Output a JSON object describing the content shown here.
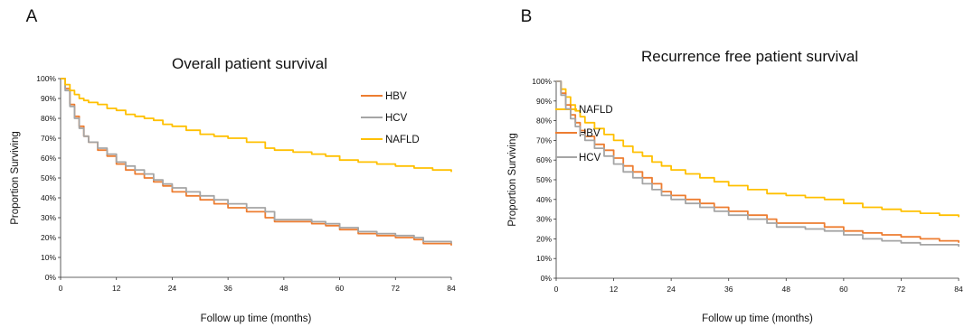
{
  "chart_data": [
    {
      "panel_label": "A",
      "type": "line",
      "title": "Overall patient survival",
      "xlabel": "Follow up time (months)",
      "ylabel": "Proportion Surviving",
      "xlim": [
        0,
        84
      ],
      "ylim": [
        0,
        100
      ],
      "x_ticks": [
        "0",
        "12",
        "24",
        "36",
        "48",
        "60",
        "72",
        "84"
      ],
      "y_ticks": [
        "0%",
        "10%",
        "20%",
        "30%",
        "40%",
        "50%",
        "60%",
        "70%",
        "80%",
        "90%",
        "100%"
      ],
      "grid": false,
      "legend_position": "top-right",
      "series": [
        {
          "name": "HBV",
          "color": "#ed7d31",
          "points": [
            [
              0,
              100
            ],
            [
              1,
              95
            ],
            [
              2,
              87
            ],
            [
              3,
              81
            ],
            [
              4,
              76
            ],
            [
              5,
              71
            ],
            [
              6,
              68
            ],
            [
              8,
              64
            ],
            [
              10,
              61
            ],
            [
              12,
              57
            ],
            [
              14,
              54
            ],
            [
              16,
              52
            ],
            [
              18,
              50
            ],
            [
              20,
              48
            ],
            [
              22,
              46
            ],
            [
              24,
              43
            ],
            [
              27,
              41
            ],
            [
              30,
              39
            ],
            [
              33,
              37
            ],
            [
              36,
              35
            ],
            [
              40,
              33
            ],
            [
              44,
              30
            ],
            [
              46,
              28
            ],
            [
              50,
              28
            ],
            [
              54,
              27
            ],
            [
              57,
              26
            ],
            [
              60,
              24
            ],
            [
              64,
              22
            ],
            [
              68,
              21
            ],
            [
              72,
              20
            ],
            [
              76,
              19
            ],
            [
              78,
              17
            ],
            [
              84,
              16
            ]
          ]
        },
        {
          "name": "HCV",
          "color": "#a5a5a5",
          "points": [
            [
              0,
              100
            ],
            [
              1,
              94
            ],
            [
              2,
              86
            ],
            [
              3,
              80
            ],
            [
              4,
              75
            ],
            [
              5,
              71
            ],
            [
              6,
              68
            ],
            [
              8,
              65
            ],
            [
              10,
              62
            ],
            [
              12,
              58
            ],
            [
              14,
              56
            ],
            [
              16,
              54
            ],
            [
              18,
              52
            ],
            [
              20,
              49
            ],
            [
              22,
              47
            ],
            [
              24,
              45
            ],
            [
              27,
              43
            ],
            [
              30,
              41
            ],
            [
              33,
              39
            ],
            [
              36,
              37
            ],
            [
              40,
              35
            ],
            [
              44,
              33
            ],
            [
              46,
              29
            ],
            [
              50,
              29
            ],
            [
              54,
              28
            ],
            [
              57,
              27
            ],
            [
              60,
              25
            ],
            [
              64,
              23
            ],
            [
              68,
              22
            ],
            [
              72,
              21
            ],
            [
              76,
              20
            ],
            [
              78,
              18
            ],
            [
              84,
              17
            ]
          ]
        },
        {
          "name": "NAFLD",
          "color": "#ffc000",
          "points": [
            [
              0,
              100
            ],
            [
              1,
              97
            ],
            [
              2,
              94
            ],
            [
              3,
              92
            ],
            [
              4,
              90
            ],
            [
              5,
              89
            ],
            [
              6,
              88
            ],
            [
              8,
              87
            ],
            [
              10,
              85
            ],
            [
              12,
              84
            ],
            [
              14,
              82
            ],
            [
              16,
              81
            ],
            [
              18,
              80
            ],
            [
              20,
              79
            ],
            [
              22,
              77
            ],
            [
              24,
              76
            ],
            [
              27,
              74
            ],
            [
              30,
              72
            ],
            [
              33,
              71
            ],
            [
              36,
              70
            ],
            [
              40,
              68
            ],
            [
              44,
              65
            ],
            [
              46,
              64
            ],
            [
              50,
              63
            ],
            [
              54,
              62
            ],
            [
              57,
              61
            ],
            [
              60,
              59
            ],
            [
              64,
              58
            ],
            [
              68,
              57
            ],
            [
              72,
              56
            ],
            [
              76,
              55
            ],
            [
              80,
              54
            ],
            [
              84,
              53
            ]
          ]
        }
      ]
    },
    {
      "panel_label": "B",
      "type": "line",
      "title": "Recurrence free patient survival",
      "xlabel": "Follow up time (months)",
      "ylabel": "Proportion Surviving",
      "xlim": [
        0,
        84
      ],
      "ylim": [
        0,
        100
      ],
      "x_ticks": [
        "0",
        "12",
        "24",
        "36",
        "48",
        "60",
        "72",
        "84"
      ],
      "y_ticks": [
        "0%",
        "10%",
        "20%",
        "30%",
        "40%",
        "50%",
        "60%",
        "70%",
        "80%",
        "90%",
        "100%"
      ],
      "grid": false,
      "legend_position": "top-right",
      "series": [
        {
          "name": "NAFLD",
          "color": "#ffc000",
          "points": [
            [
              0,
              100
            ],
            [
              1,
              96
            ],
            [
              2,
              92
            ],
            [
              3,
              88
            ],
            [
              4,
              85
            ],
            [
              5,
              82
            ],
            [
              6,
              79
            ],
            [
              8,
              76
            ],
            [
              10,
              73
            ],
            [
              12,
              70
            ],
            [
              14,
              67
            ],
            [
              16,
              64
            ],
            [
              18,
              62
            ],
            [
              20,
              59
            ],
            [
              22,
              57
            ],
            [
              24,
              55
            ],
            [
              27,
              53
            ],
            [
              30,
              51
            ],
            [
              33,
              49
            ],
            [
              36,
              47
            ],
            [
              40,
              45
            ],
            [
              44,
              43
            ],
            [
              48,
              42
            ],
            [
              52,
              41
            ],
            [
              56,
              40
            ],
            [
              60,
              38
            ],
            [
              64,
              36
            ],
            [
              68,
              35
            ],
            [
              72,
              34
            ],
            [
              76,
              33
            ],
            [
              80,
              32
            ],
            [
              84,
              31
            ]
          ]
        },
        {
          "name": "HBV",
          "color": "#ed7d31",
          "points": [
            [
              0,
              100
            ],
            [
              1,
              94
            ],
            [
              2,
              88
            ],
            [
              3,
              83
            ],
            [
              4,
              79
            ],
            [
              5,
              75
            ],
            [
              6,
              72
            ],
            [
              8,
              68
            ],
            [
              10,
              65
            ],
            [
              12,
              61
            ],
            [
              14,
              57
            ],
            [
              16,
              54
            ],
            [
              18,
              51
            ],
            [
              20,
              48
            ],
            [
              22,
              44
            ],
            [
              24,
              42
            ],
            [
              27,
              40
            ],
            [
              30,
              38
            ],
            [
              33,
              36
            ],
            [
              36,
              34
            ],
            [
              40,
              32
            ],
            [
              44,
              30
            ],
            [
              46,
              28
            ],
            [
              52,
              28
            ],
            [
              56,
              26
            ],
            [
              60,
              24
            ],
            [
              64,
              23
            ],
            [
              68,
              22
            ],
            [
              72,
              21
            ],
            [
              76,
              20
            ],
            [
              80,
              19
            ],
            [
              84,
              18
            ]
          ]
        },
        {
          "name": "HCV",
          "color": "#a5a5a5",
          "points": [
            [
              0,
              100
            ],
            [
              1,
              93
            ],
            [
              2,
              86
            ],
            [
              3,
              81
            ],
            [
              4,
              77
            ],
            [
              5,
              73
            ],
            [
              6,
              70
            ],
            [
              8,
              66
            ],
            [
              10,
              62
            ],
            [
              12,
              58
            ],
            [
              14,
              54
            ],
            [
              16,
              51
            ],
            [
              18,
              48
            ],
            [
              20,
              45
            ],
            [
              22,
              42
            ],
            [
              24,
              40
            ],
            [
              27,
              38
            ],
            [
              30,
              36
            ],
            [
              33,
              34
            ],
            [
              36,
              32
            ],
            [
              40,
              30
            ],
            [
              44,
              28
            ],
            [
              46,
              26
            ],
            [
              52,
              25
            ],
            [
              56,
              24
            ],
            [
              60,
              22
            ],
            [
              64,
              20
            ],
            [
              68,
              19
            ],
            [
              72,
              18
            ],
            [
              76,
              17
            ],
            [
              80,
              17
            ],
            [
              84,
              16
            ]
          ]
        }
      ]
    }
  ]
}
